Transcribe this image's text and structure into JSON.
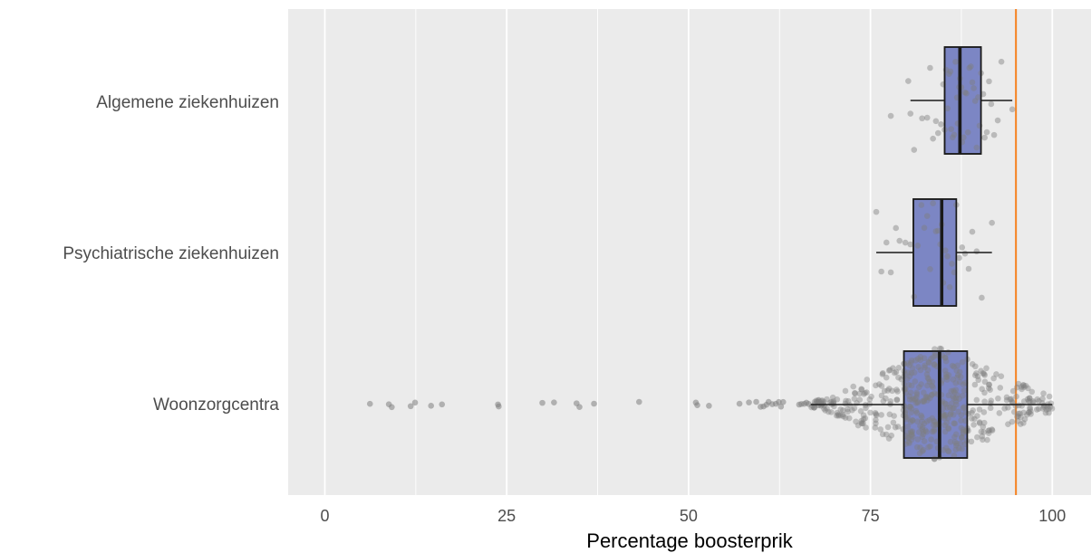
{
  "chart_data": {
    "type": "boxplot",
    "title": "",
    "xlabel": "Percentage boosterprik",
    "ylabel": "",
    "xlim": [
      -5,
      103
    ],
    "xticks": [
      0,
      25,
      50,
      75,
      100
    ],
    "xtick_labels": [
      "0",
      "25",
      "50",
      "75",
      "100"
    ],
    "grid": true,
    "reference_line": {
      "x": 95,
      "color": "#F58220"
    },
    "colors": {
      "panel": "#EBEBEB",
      "grid": "#FFFFFF",
      "box_fill": "#7C86C4",
      "box_edge": "#1A1A1A",
      "points": "#7F7F7F"
    },
    "categories": [
      "Algemene ziekenhuizen",
      "Psychiatrische ziekenhuizen",
      "Woonzorgcentra"
    ],
    "series": [
      {
        "category": "Algemene ziekenhuizen",
        "whisker_low": 80.5,
        "q1": 85.2,
        "median": 87.3,
        "q3": 90.2,
        "whisker_high": 94.5,
        "points": [
          77.8,
          80.2,
          80.5,
          81.0,
          82.1,
          82.8,
          83.2,
          83.6,
          84.0,
          84.3,
          84.7,
          85.0,
          85.2,
          85.4,
          85.6,
          85.8,
          86.0,
          86.1,
          86.3,
          86.5,
          86.7,
          86.9,
          87.0,
          87.2,
          87.3,
          87.5,
          87.6,
          87.8,
          88.0,
          88.2,
          88.4,
          88.6,
          88.8,
          89.0,
          89.2,
          89.4,
          89.6,
          89.8,
          90.0,
          90.2,
          90.5,
          90.7,
          91.0,
          91.3,
          91.6,
          92.0,
          92.5,
          93.0,
          94.5
        ]
      },
      {
        "category": "Psychiatrische ziekenhuizen",
        "whisker_low": 75.8,
        "q1": 80.9,
        "median": 84.8,
        "q3": 86.8,
        "whisker_high": 91.7,
        "points": [
          75.8,
          76.5,
          77.2,
          77.8,
          78.5,
          79.0,
          79.8,
          80.5,
          81.0,
          81.5,
          82.0,
          82.4,
          82.8,
          83.2,
          83.6,
          84.0,
          84.3,
          84.6,
          84.8,
          85.0,
          85.3,
          85.6,
          85.9,
          86.2,
          86.5,
          86.8,
          87.2,
          87.6,
          88.0,
          88.5,
          89.0,
          89.6,
          90.3,
          91.7
        ]
      },
      {
        "category": "Woonzorgcentra",
        "whisker_low": 66.8,
        "q1": 79.6,
        "median": 84.5,
        "q3": 88.3,
        "whisker_high": 100,
        "outliers": [
          6.2,
          8.8,
          9.2,
          11.8,
          12.4,
          14.6,
          16.1,
          23.8,
          23.9,
          29.9,
          31.5,
          34.6,
          35.0,
          37.0,
          43.2,
          51.0,
          51.2,
          52.8,
          57.0,
          58.3,
          59.3,
          59.9,
          60.3,
          60.7,
          61.0,
          61.5,
          62.0,
          62.4,
          62.7,
          63.0,
          65.2,
          65.5,
          65.9,
          66.2,
          66.5
        ]
      }
    ]
  }
}
